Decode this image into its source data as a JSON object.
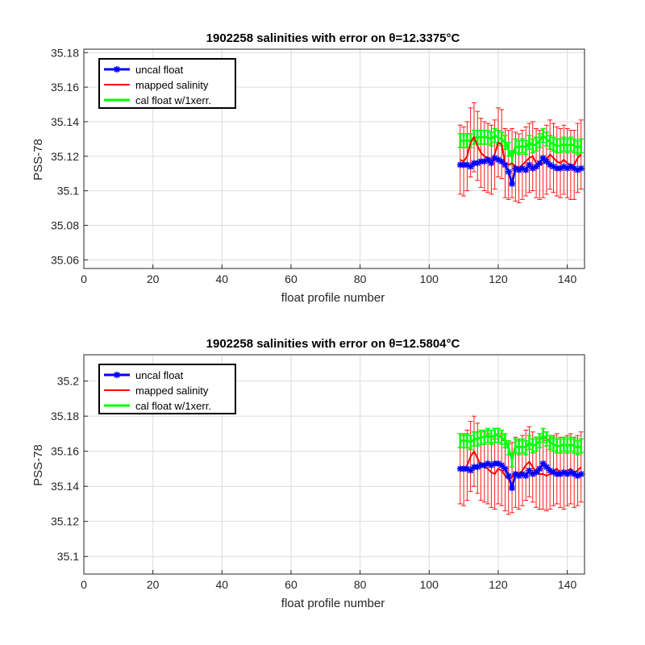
{
  "chart_data": [
    {
      "type": "line",
      "title": "1902258 salinities with error on θ=12.3375°C",
      "xlabel": "float profile number",
      "ylabel": "PSS-78",
      "xlim": [
        0,
        145
      ],
      "ylim": [
        35.055,
        35.182
      ],
      "xticks": [
        "0",
        "20",
        "40",
        "60",
        "80",
        "100",
        "120",
        "140"
      ],
      "yticks": [
        "35.06",
        "35.08",
        "35.1",
        "35.12",
        "35.14",
        "35.16",
        "35.18"
      ],
      "grid": true,
      "legend_position": "top-left",
      "x_start": 109,
      "x_step": 1,
      "series": [
        {
          "name": "uncal float",
          "color": "#0000ff",
          "values": [
            35.115,
            35.115,
            35.115,
            35.114,
            35.116,
            35.116,
            35.117,
            35.117,
            35.118,
            35.116,
            35.119,
            35.118,
            35.117,
            35.115,
            35.111,
            35.104,
            35.113,
            35.112,
            35.113,
            35.112,
            35.115,
            35.113,
            35.114,
            35.116,
            35.119,
            35.117,
            35.115,
            35.114,
            35.113,
            35.113,
            35.114,
            35.113,
            35.114,
            35.113,
            35.112,
            35.113
          ]
        },
        {
          "name": "mapped salinity",
          "color": "#ff0000",
          "values": [
            35.118,
            35.117,
            35.12,
            35.128,
            35.131,
            35.126,
            35.122,
            35.12,
            35.119,
            35.118,
            35.121,
            35.128,
            35.127,
            35.116,
            35.115,
            35.116,
            35.114,
            35.113,
            35.115,
            35.117,
            35.119,
            35.12,
            35.116,
            35.115,
            35.116,
            35.118,
            35.121,
            35.119,
            35.117,
            35.116,
            35.118,
            35.116,
            35.115,
            35.115,
            35.119,
            35.121
          ],
          "errors": [
            0.02,
            0.02,
            0.02,
            0.02,
            0.02,
            0.02,
            0.02,
            0.02,
            0.02,
            0.02,
            0.02,
            0.02,
            0.02,
            0.02,
            0.02,
            0.02,
            0.02,
            0.02,
            0.02,
            0.02,
            0.02,
            0.02,
            0.02,
            0.02,
            0.02,
            0.02,
            0.02,
            0.02,
            0.02,
            0.02,
            0.02,
            0.02,
            0.02,
            0.02,
            0.02,
            0.02
          ]
        },
        {
          "name": "cal float w/1xerr.",
          "color": "#00ff00",
          "values": [
            35.129,
            35.129,
            35.129,
            35.129,
            35.131,
            35.131,
            35.131,
            35.131,
            35.131,
            35.13,
            35.132,
            35.131,
            35.13,
            35.128,
            35.124,
            35.119,
            35.126,
            35.125,
            35.126,
            35.125,
            35.128,
            35.126,
            35.127,
            35.129,
            35.132,
            35.13,
            35.128,
            35.127,
            35.126,
            35.126,
            35.127,
            35.126,
            35.127,
            35.126,
            35.125,
            35.126
          ],
          "error": 0.004
        }
      ]
    },
    {
      "type": "line",
      "title": "1902258 salinities with error on θ=12.5804°C",
      "xlabel": "float profile number",
      "ylabel": "PSS-78",
      "xlim": [
        0,
        145
      ],
      "ylim": [
        35.09,
        35.215
      ],
      "xticks": [
        "0",
        "20",
        "40",
        "60",
        "80",
        "100",
        "120",
        "140"
      ],
      "yticks": [
        "35.1",
        "35.12",
        "35.14",
        "35.16",
        "35.18",
        "35.2"
      ],
      "grid": true,
      "legend_position": "top-left",
      "x_start": 109,
      "x_step": 1,
      "series": [
        {
          "name": "uncal float",
          "color": "#0000ff",
          "values": [
            35.15,
            35.15,
            35.15,
            35.149,
            35.151,
            35.151,
            35.152,
            35.152,
            35.153,
            35.152,
            35.153,
            35.153,
            35.152,
            35.15,
            35.146,
            35.139,
            35.147,
            35.146,
            35.147,
            35.146,
            35.149,
            35.147,
            35.148,
            35.15,
            35.153,
            35.151,
            35.149,
            35.148,
            35.147,
            35.147,
            35.148,
            35.147,
            35.148,
            35.147,
            35.146,
            35.147
          ]
        },
        {
          "name": "mapped salinity",
          "color": "#ff0000",
          "values": [
            35.15,
            35.149,
            35.152,
            35.157,
            35.16,
            35.156,
            35.152,
            35.151,
            35.15,
            35.148,
            35.147,
            35.15,
            35.149,
            35.146,
            35.144,
            35.145,
            35.148,
            35.147,
            35.149,
            35.152,
            35.154,
            35.151,
            35.148,
            35.147,
            35.147,
            35.146,
            35.147,
            35.149,
            35.15,
            35.148,
            35.147,
            35.149,
            35.15,
            35.148,
            35.149,
            35.151
          ],
          "errors": [
            0.02,
            0.02,
            0.02,
            0.02,
            0.02,
            0.02,
            0.02,
            0.02,
            0.02,
            0.02,
            0.02,
            0.02,
            0.02,
            0.02,
            0.02,
            0.02,
            0.02,
            0.02,
            0.02,
            0.02,
            0.02,
            0.02,
            0.02,
            0.02,
            0.02,
            0.02,
            0.02,
            0.02,
            0.02,
            0.02,
            0.02,
            0.02,
            0.02,
            0.02,
            0.02,
            0.02
          ]
        },
        {
          "name": "cal float w/1xerr.",
          "color": "#00ff00",
          "values": [
            35.166,
            35.166,
            35.166,
            35.165,
            35.167,
            35.167,
            35.168,
            35.168,
            35.169,
            35.168,
            35.169,
            35.169,
            35.168,
            35.166,
            35.162,
            35.155,
            35.163,
            35.162,
            35.163,
            35.162,
            35.165,
            35.163,
            35.164,
            35.166,
            35.169,
            35.167,
            35.165,
            35.164,
            35.163,
            35.163,
            35.164,
            35.163,
            35.164,
            35.163,
            35.162,
            35.163
          ],
          "error": 0.004
        }
      ]
    }
  ]
}
